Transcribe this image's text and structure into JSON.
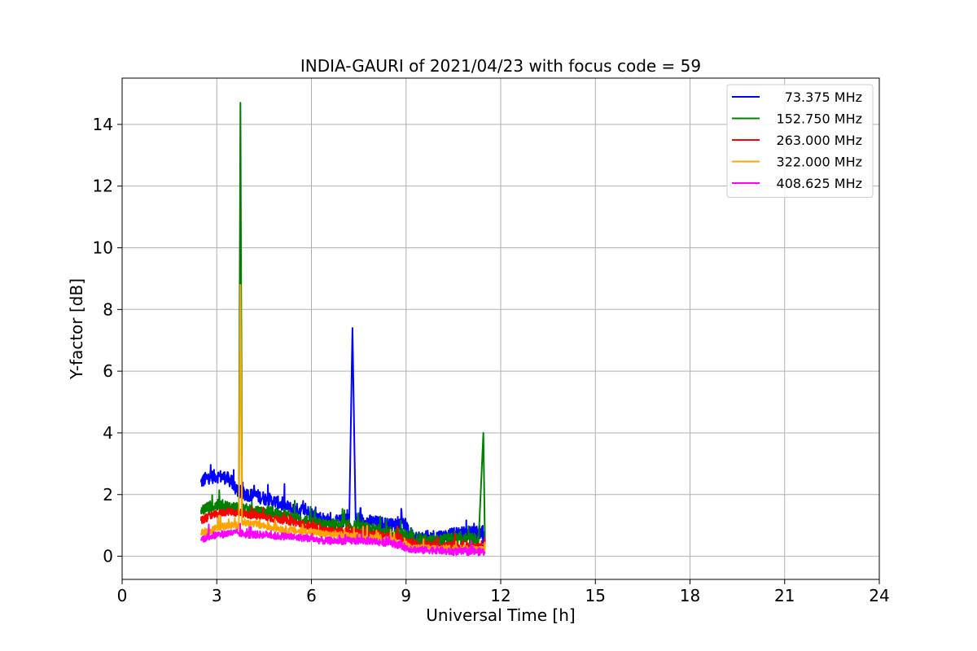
{
  "chart_data": {
    "type": "line",
    "title": "INDIA-GAURI of 2021/04/23 with focus code = 59",
    "xlabel": "Universal Time [h]",
    "ylabel": "Y-factor [dB]",
    "xlim": [
      0,
      24
    ],
    "ylim": [
      -0.75,
      15.5
    ],
    "xticks": [
      0,
      3,
      6,
      9,
      12,
      15,
      18,
      21,
      24
    ],
    "yticks": [
      0,
      2,
      4,
      6,
      8,
      10,
      12,
      14
    ],
    "grid": true,
    "legend_position": "upper-right",
    "series": [
      {
        "name": "73.375 MHz",
        "color": "#0000ff",
        "x": [
          2.5,
          2.7,
          3.0,
          3.3,
          3.5,
          3.6,
          3.8,
          4.0,
          4.3,
          4.6,
          4.9,
          5.2,
          5.5,
          5.8,
          6.1,
          6.4,
          6.7,
          7.0,
          7.2,
          7.3,
          7.4,
          7.7,
          8.0,
          8.3,
          8.6,
          8.9,
          9.1,
          9.3,
          9.6,
          9.9,
          10.2,
          10.5,
          10.8,
          11.1,
          11.4,
          11.5
        ],
        "y": [
          2.4,
          2.55,
          2.6,
          2.55,
          2.4,
          2.2,
          2.05,
          2.0,
          1.95,
          1.85,
          1.75,
          1.6,
          1.5,
          1.5,
          1.3,
          1.2,
          1.1,
          1.15,
          1.2,
          7.4,
          1.2,
          1.15,
          1.1,
          1.05,
          1.0,
          1.1,
          0.75,
          0.6,
          0.6,
          0.65,
          0.65,
          0.7,
          0.75,
          0.75,
          0.8,
          0.4
        ],
        "spikes": [
          {
            "x": 7.3,
            "y": 7.4
          }
        ]
      },
      {
        "name": "152.750 MHz",
        "color": "#008000",
        "x": [
          2.5,
          2.8,
          3.1,
          3.4,
          3.7,
          3.75,
          3.8,
          4.1,
          4.4,
          4.7,
          5.0,
          5.3,
          5.6,
          5.9,
          6.2,
          6.5,
          6.8,
          7.1,
          7.4,
          7.7,
          8.0,
          8.3,
          8.6,
          8.9,
          9.2,
          9.5,
          9.8,
          10.1,
          10.4,
          10.7,
          11.0,
          11.3,
          11.45,
          11.5
        ],
        "y": [
          1.5,
          1.6,
          1.65,
          1.6,
          1.55,
          14.7,
          1.55,
          1.45,
          1.4,
          1.45,
          1.35,
          1.3,
          1.2,
          1.15,
          1.05,
          1.0,
          1.0,
          1.0,
          0.95,
          0.9,
          0.85,
          0.8,
          0.75,
          0.7,
          0.6,
          0.5,
          0.5,
          0.5,
          0.55,
          0.55,
          0.55,
          0.55,
          4.0,
          0.5
        ],
        "spikes": [
          {
            "x": 3.75,
            "y": 14.7
          },
          {
            "x": 11.45,
            "y": 4.0
          }
        ]
      },
      {
        "name": "263.000 MHz",
        "color": "#ff0000",
        "x": [
          2.5,
          2.8,
          3.1,
          3.4,
          3.7,
          4.0,
          4.3,
          4.6,
          4.9,
          5.2,
          5.5,
          5.8,
          6.1,
          6.4,
          6.7,
          7.0,
          7.3,
          7.6,
          7.9,
          8.2,
          8.5,
          8.8,
          9.1,
          9.4,
          9.7,
          10.0,
          10.3,
          10.6,
          10.9,
          11.2,
          11.5
        ],
        "y": [
          1.15,
          1.3,
          1.4,
          1.45,
          1.4,
          1.35,
          1.3,
          1.25,
          1.2,
          1.15,
          1.1,
          1.0,
          0.9,
          0.85,
          0.8,
          0.8,
          0.8,
          0.75,
          0.75,
          0.7,
          0.65,
          0.6,
          0.45,
          0.35,
          0.35,
          0.35,
          0.35,
          0.35,
          0.3,
          0.3,
          0.3
        ]
      },
      {
        "name": "322.000 MHz",
        "color": "#ffa500",
        "x": [
          2.5,
          2.8,
          3.1,
          3.4,
          3.7,
          3.75,
          3.8,
          4.1,
          4.4,
          4.7,
          5.0,
          5.3,
          5.6,
          5.9,
          6.2,
          6.5,
          6.8,
          7.1,
          7.4,
          7.7,
          8.0,
          8.3,
          8.6,
          8.9,
          9.2,
          9.5,
          9.8,
          10.1,
          10.4,
          10.7,
          11.0,
          11.3,
          11.5
        ],
        "y": [
          0.75,
          0.85,
          0.95,
          1.0,
          1.0,
          8.8,
          1.1,
          1.05,
          1.0,
          0.95,
          0.9,
          0.85,
          0.8,
          0.8,
          0.75,
          0.7,
          0.7,
          0.65,
          0.65,
          0.6,
          0.6,
          0.55,
          0.5,
          0.4,
          0.3,
          0.25,
          0.25,
          0.25,
          0.25,
          0.25,
          0.25,
          0.2,
          0.2
        ],
        "spikes": [
          {
            "x": 3.75,
            "y": 8.8
          }
        ]
      },
      {
        "name": "408.625 MHz",
        "color": "#ff00ff",
        "x": [
          2.5,
          2.8,
          3.1,
          3.4,
          3.7,
          4.0,
          4.3,
          4.6,
          4.9,
          5.2,
          5.5,
          5.8,
          6.1,
          6.4,
          6.7,
          7.0,
          7.3,
          7.6,
          7.9,
          8.2,
          8.5,
          8.8,
          9.1,
          9.4,
          9.7,
          10.0,
          10.3,
          10.6,
          10.9,
          11.2,
          11.5
        ],
        "y": [
          0.55,
          0.65,
          0.7,
          0.75,
          0.75,
          0.7,
          0.7,
          0.7,
          0.65,
          0.65,
          0.6,
          0.6,
          0.55,
          0.5,
          0.5,
          0.5,
          0.5,
          0.5,
          0.5,
          0.45,
          0.45,
          0.35,
          0.25,
          0.2,
          0.2,
          0.2,
          0.15,
          0.15,
          0.15,
          0.15,
          0.15
        ]
      }
    ]
  }
}
